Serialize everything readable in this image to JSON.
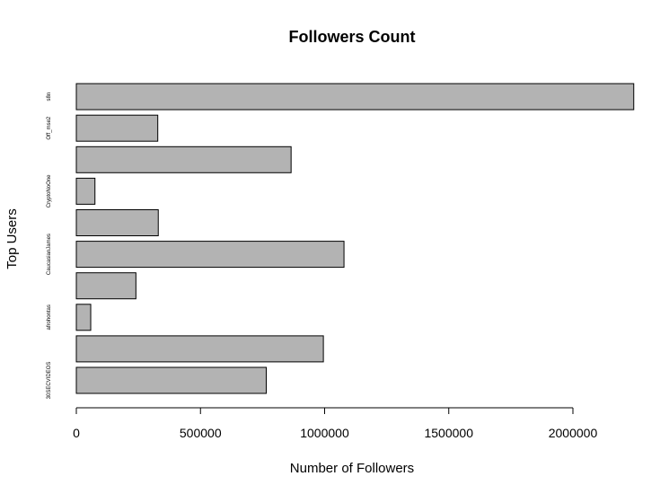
{
  "chart_data": {
    "type": "bar",
    "orientation": "horizontal",
    "title": "Followers Count",
    "xlabel": "Number of Followers",
    "ylabel": "Top Users",
    "xlim": [
      0,
      2250000
    ],
    "xticks": [
      0,
      500000,
      1000000,
      1500000,
      2000000
    ],
    "xtick_labels": [
      "0",
      "500000",
      "1000000",
      "1500000",
      "2000000"
    ],
    "bar_color": "#b3b3b3",
    "categories": [
      "30SECVIDEOS",
      "",
      "afrohontas",
      "",
      "CaucasianJames",
      "",
      "CryptoNoOne",
      "",
      "Off_mse2",
      "s8n"
    ],
    "values": [
      765000,
      995000,
      58000,
      240000,
      1078000,
      330000,
      75000,
      865000,
      328000,
      2245000
    ]
  }
}
